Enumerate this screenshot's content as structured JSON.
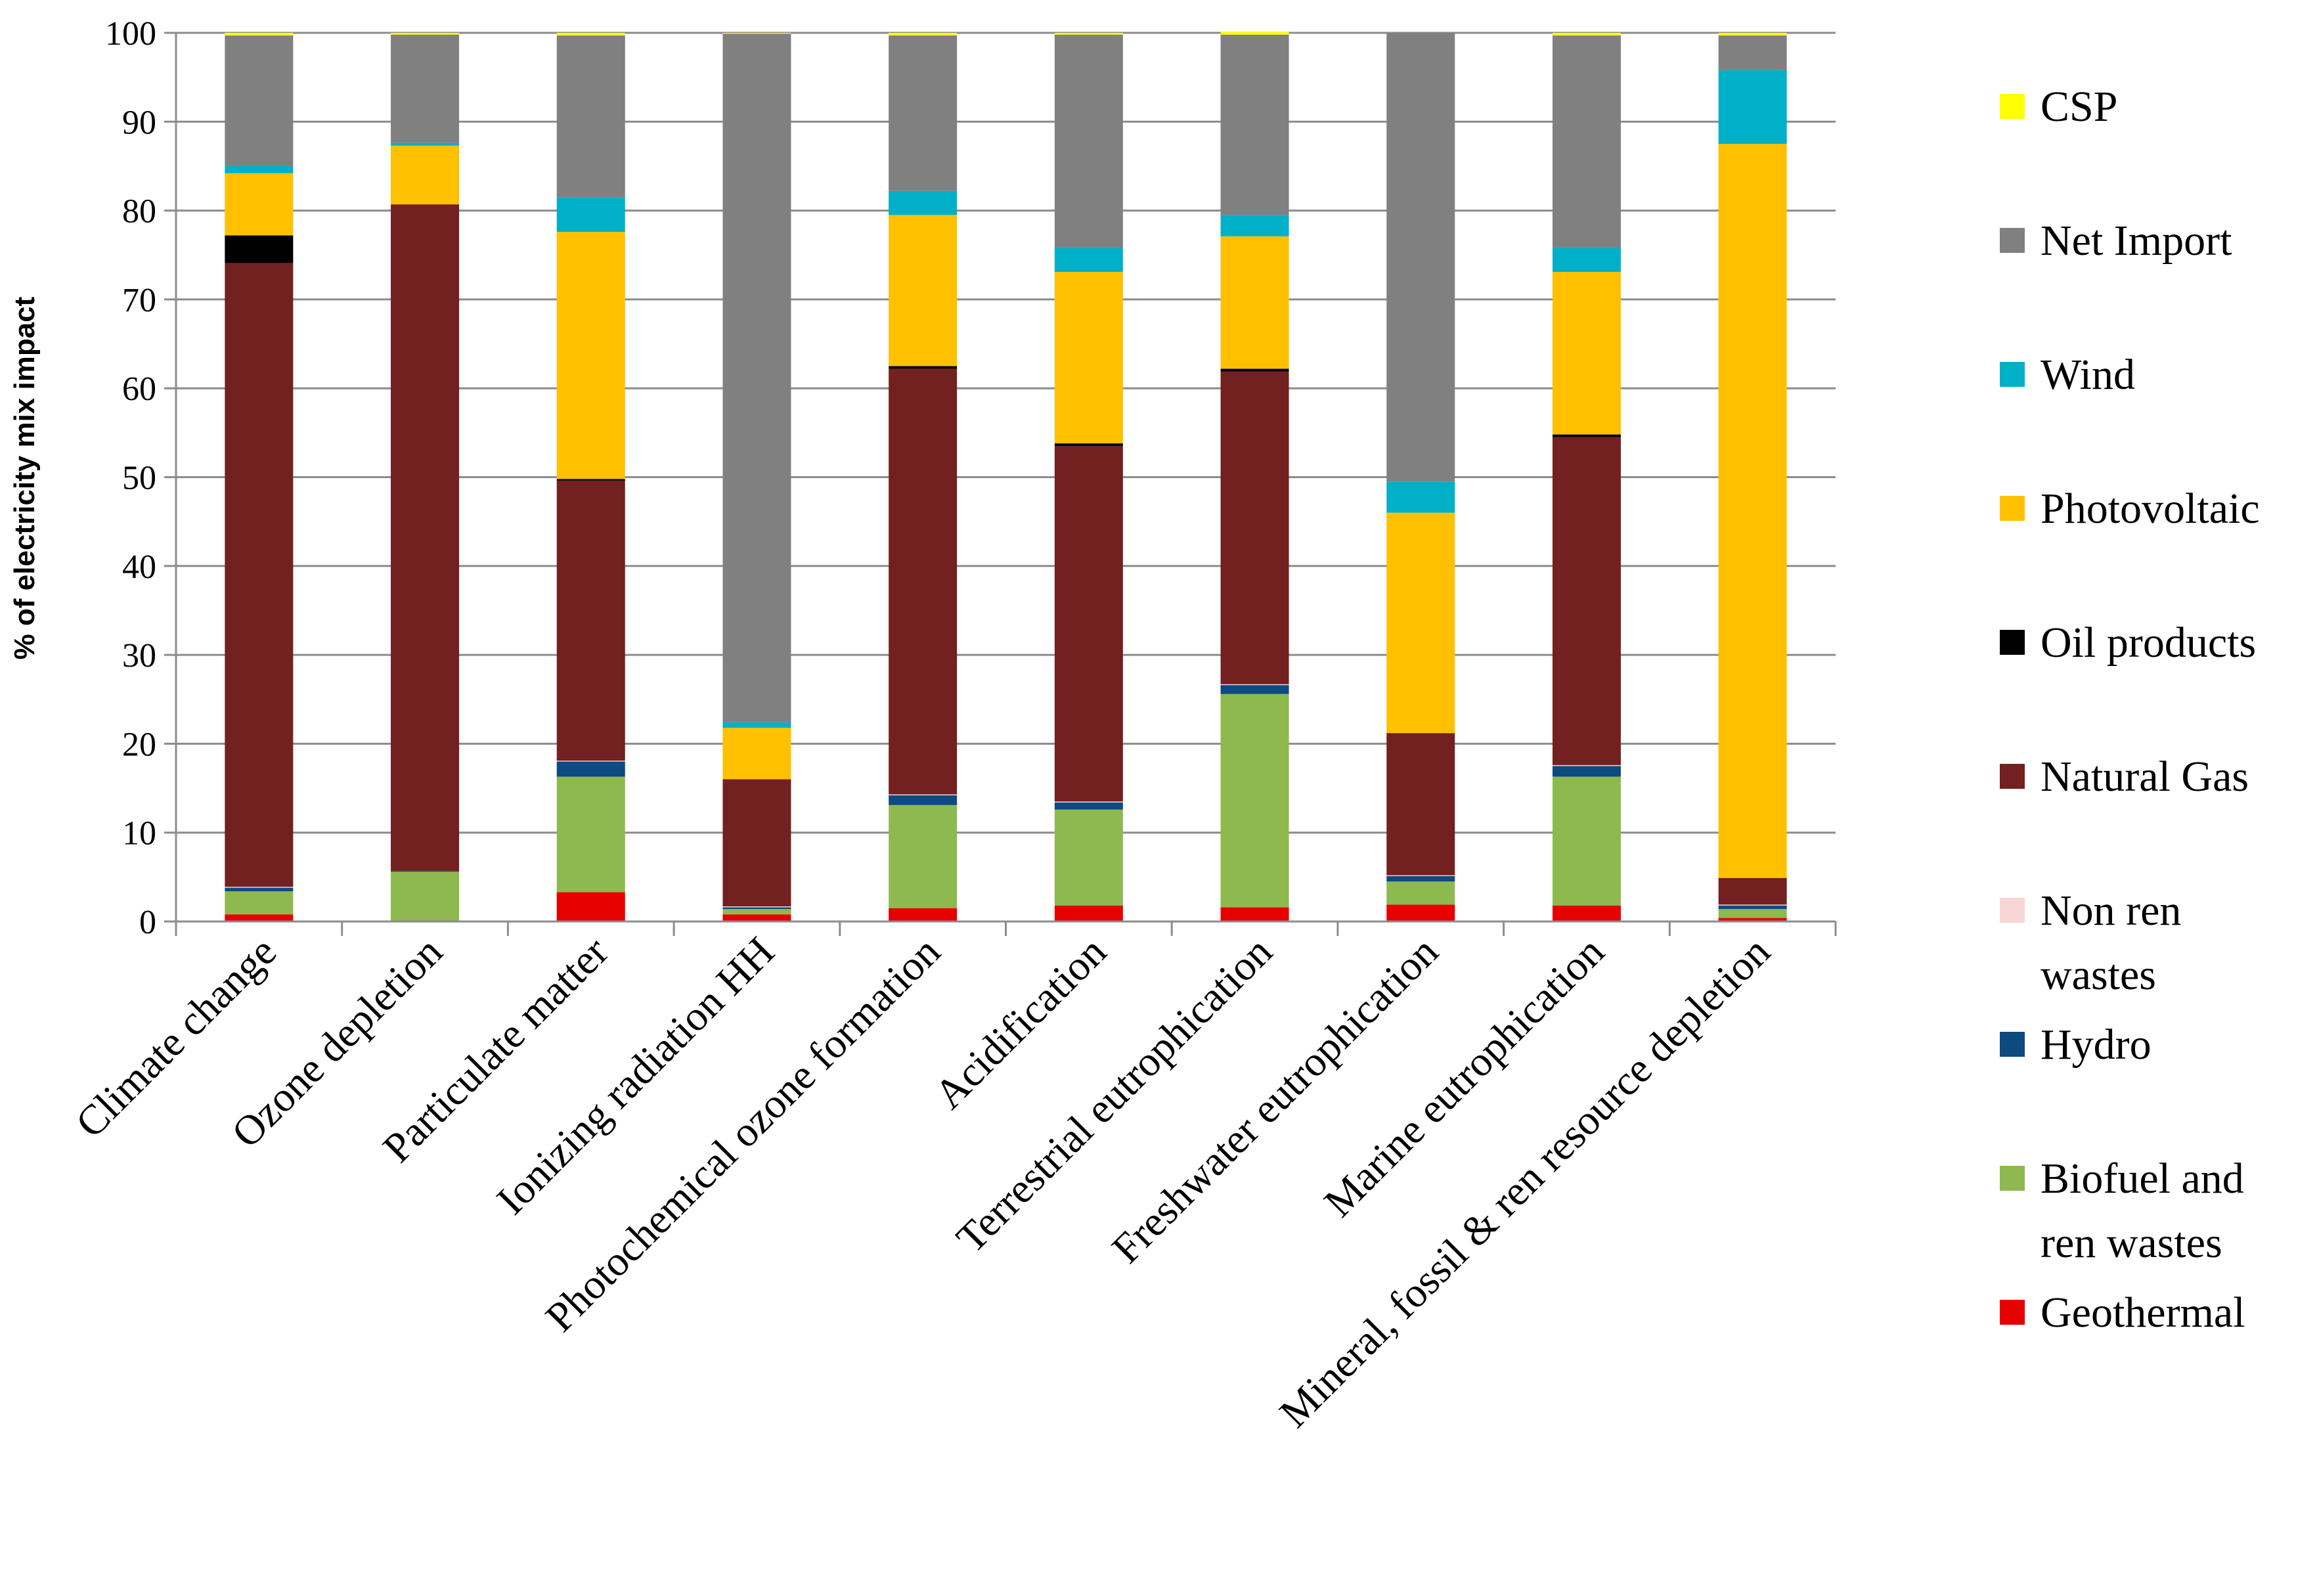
{
  "chart_data": {
    "type": "bar",
    "stacked": true,
    "title": "",
    "xlabel": "",
    "ylabel": "% of electricity mix impact",
    "ylim": [
      0,
      100
    ],
    "yticks": [
      0,
      10,
      20,
      30,
      40,
      50,
      60,
      70,
      80,
      90,
      100
    ],
    "grid": true,
    "legend_position": "right",
    "categories": [
      "Climate change",
      "Ozone depletion",
      "Particulate matter",
      "Ionizing radiation HH",
      "Photochemical ozone formation",
      "Acidification",
      "Terrestrial eutrophication",
      "Freshwater eutrophication",
      "Marine eutrophication",
      "Mineral, fossil & ren resource depletion"
    ],
    "series": [
      {
        "name": "Geothermal",
        "legend_lines": [
          "Geothermal"
        ],
        "color": "#e60000",
        "values": [
          0.8,
          0.0,
          3.3,
          0.8,
          1.5,
          1.8,
          1.6,
          1.9,
          1.8,
          0.4
        ]
      },
      {
        "name": "Biofuel and ren wastes",
        "legend_lines": [
          "Biofuel and",
          "ren wastes"
        ],
        "color": "#8db94f",
        "values": [
          2.6,
          5.6,
          13.0,
          0.6,
          11.6,
          10.8,
          24.0,
          2.6,
          14.5,
          1.0
        ]
      },
      {
        "name": "Hydro",
        "legend_lines": [
          "Hydro"
        ],
        "color": "#0d4a80",
        "values": [
          0.4,
          0.1,
          1.7,
          0.2,
          1.1,
          0.8,
          1.0,
          0.6,
          1.2,
          0.4
        ]
      },
      {
        "name": "Non ren wastes",
        "legend_lines": [
          "Non ren",
          "wastes"
        ],
        "color": "#f9d6d6",
        "values": [
          0.1,
          0.0,
          0.1,
          0.1,
          0.1,
          0.1,
          0.1,
          0.1,
          0.1,
          0.1
        ]
      },
      {
        "name": "Natural Gas",
        "legend_lines": [
          "Natural Gas"
        ],
        "color": "#722020",
        "values": [
          70.2,
          75.0,
          31.5,
          14.3,
          47.9,
          40.0,
          35.2,
          16.0,
          36.9,
          3.0
        ]
      },
      {
        "name": "Oil products",
        "legend_lines": [
          "Oil products"
        ],
        "color": "#000000",
        "values": [
          3.1,
          0.0,
          0.2,
          0.0,
          0.3,
          0.3,
          0.3,
          0.0,
          0.3,
          0.0
        ]
      },
      {
        "name": "Photovoltaic",
        "legend_lines": [
          "Photovoltaic"
        ],
        "color": "#ffc000",
        "values": [
          7.0,
          6.6,
          27.8,
          5.8,
          17.0,
          19.3,
          14.9,
          24.8,
          18.3,
          82.6
        ]
      },
      {
        "name": "Wind",
        "legend_lines": [
          "Wind"
        ],
        "color": "#00b0c8",
        "values": [
          0.8,
          0.3,
          3.9,
          0.6,
          2.7,
          2.7,
          2.4,
          3.5,
          2.7,
          8.3
        ]
      },
      {
        "name": "Net Import",
        "legend_lines": [
          "Net Import"
        ],
        "color": "#808080",
        "values": [
          14.7,
          12.2,
          18.2,
          77.5,
          17.5,
          24.0,
          20.3,
          50.5,
          23.9,
          3.9
        ]
      },
      {
        "name": "CSP",
        "legend_lines": [
          "CSP"
        ],
        "color": "#ffff00",
        "values": [
          0.3,
          0.2,
          0.3,
          0.1,
          0.3,
          0.2,
          0.3,
          0.0,
          0.3,
          0.3
        ]
      }
    ]
  }
}
